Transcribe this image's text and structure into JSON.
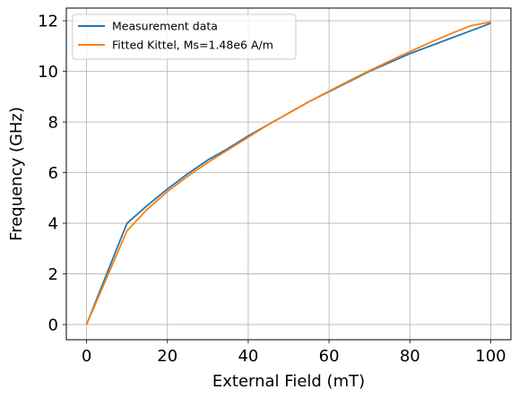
{
  "chart_data": {
    "type": "line",
    "xlabel": "External Field (mT)",
    "ylabel": "Frequency (GHz)",
    "xlim": [
      -5,
      105
    ],
    "ylim": [
      -0.6,
      12.5
    ],
    "xticks": [
      0,
      20,
      40,
      60,
      80,
      100
    ],
    "yticks": [
      0,
      2,
      4,
      6,
      8,
      10,
      12
    ],
    "grid": true,
    "legend_position": "top-left",
    "series": [
      {
        "name": "Measurement data",
        "color": "#1f77b4",
        "x": [
          0,
          10,
          15,
          20,
          25,
          30,
          35,
          40,
          45,
          50,
          55,
          60,
          65,
          70,
          75,
          80,
          85,
          90,
          95,
          100
        ],
        "y": [
          0.0,
          4.0,
          4.7,
          5.35,
          5.95,
          6.5,
          6.95,
          7.45,
          7.9,
          8.35,
          8.8,
          9.2,
          9.6,
          10.0,
          10.35,
          10.7,
          11.0,
          11.3,
          11.6,
          11.9
        ]
      },
      {
        "name": "Fitted Kittel, Ms=1.48e6 A/m",
        "color": "#ff7f0e",
        "x": [
          0,
          10,
          15,
          20,
          25,
          30,
          35,
          40,
          45,
          50,
          55,
          60,
          65,
          70,
          75,
          80,
          85,
          90,
          95,
          100
        ],
        "y": [
          0.0,
          3.7,
          4.55,
          5.25,
          5.85,
          6.4,
          6.9,
          7.4,
          7.9,
          8.35,
          8.8,
          9.22,
          9.63,
          10.03,
          10.41,
          10.78,
          11.14,
          11.48,
          11.8,
          11.95
        ]
      }
    ]
  }
}
